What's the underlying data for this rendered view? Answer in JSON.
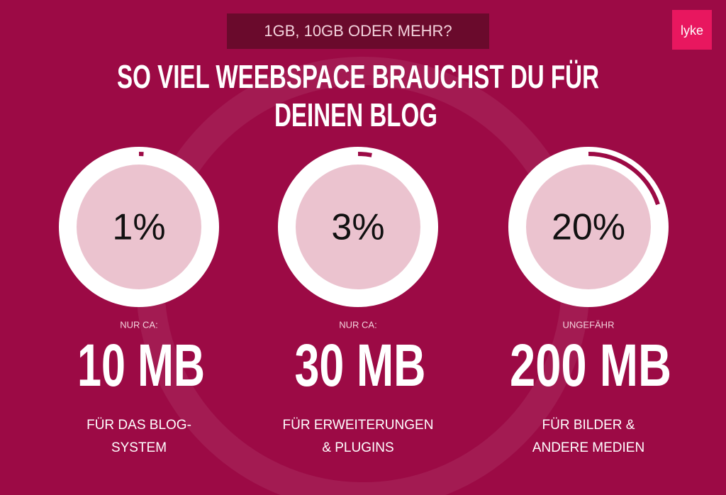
{
  "header": {
    "tag": "1GB, 10GB ODER MEHR?",
    "logo": "lyke",
    "title_lines": [
      "SO VIEL WEEBSPACE BRAUCHST DU FÜR",
      "DEINEN BLOG"
    ]
  },
  "items": [
    {
      "value": 1,
      "value_label": "1%",
      "prefix": "NUR CA:",
      "amount": "10 MB",
      "description": [
        "FÜR DAS BLOG-",
        "SYSTEM"
      ]
    },
    {
      "value": 3,
      "value_label": "3%",
      "prefix": "NUR CA:",
      "amount": "30 MB",
      "description": [
        "FÜR ERWEITERUNGEN",
        "& PLUGINS"
      ]
    },
    {
      "value": 20,
      "value_label": "20%",
      "prefix": "UNGEFÄHR",
      "amount": "200 MB",
      "description": [
        "FÜR BILDER &",
        "ANDERE MEDIEN"
      ]
    }
  ]
}
